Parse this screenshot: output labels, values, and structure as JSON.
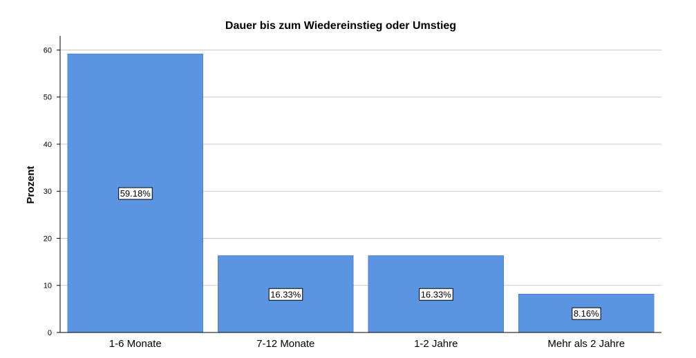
{
  "chart_data": {
    "type": "bar",
    "title": "Dauer bis zum Wiedereinstieg oder Umstieg",
    "xlabel": "",
    "ylabel": "Prozent",
    "categories": [
      "1-6 Monate",
      "7-12 Monate",
      "1-2 Jahre",
      "Mehr als 2 Jahre"
    ],
    "values": [
      59.18,
      16.33,
      16.33,
      8.16
    ],
    "data_labels": [
      "59.18%",
      "16.33%",
      "16.33%",
      "8.16%"
    ],
    "yticks": [
      "0",
      "10",
      "20",
      "30",
      "40",
      "50",
      "60"
    ],
    "ylim": [
      0,
      63
    ],
    "grid": true,
    "bar_color": "#5b95e2",
    "bar_edge_color": "#3f6fbf",
    "grid_color": "#c8c8c8"
  }
}
